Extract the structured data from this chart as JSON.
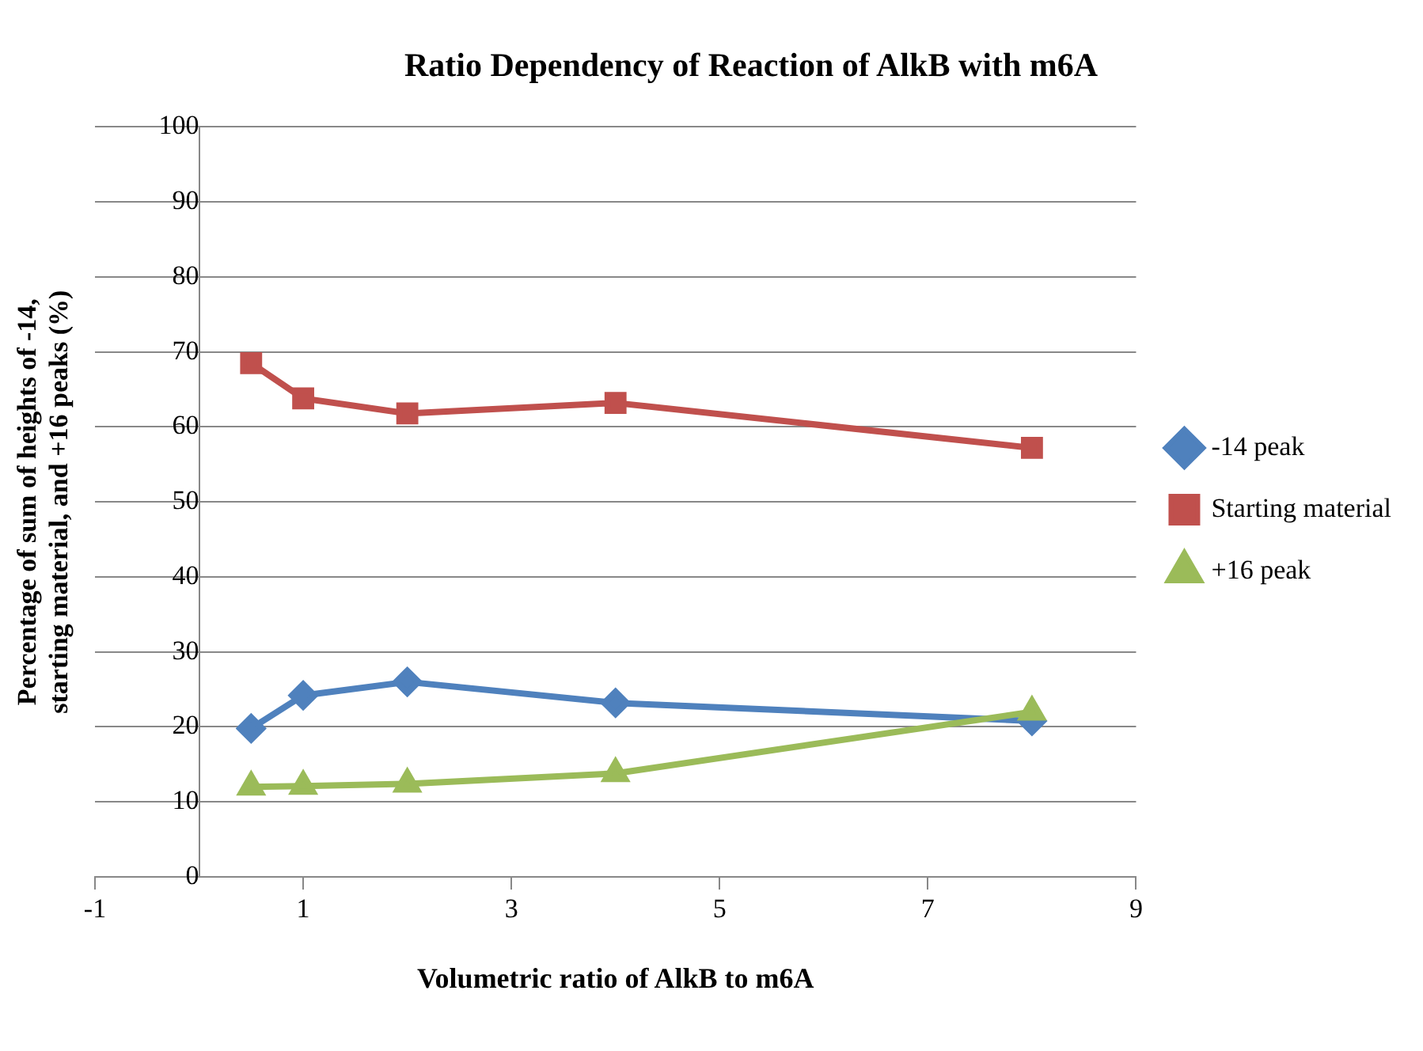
{
  "chart_data": {
    "type": "line",
    "title": "Ratio Dependency of Reaction of AlkB with m6A",
    "xlabel": "Volumetric ratio of AlkB to m6A",
    "ylabel": "Percentage of sum of heights of -14, starting material, and +16 peaks (%)",
    "x": [
      0.5,
      1,
      2,
      4,
      8
    ],
    "series": [
      {
        "name": "-14 peak",
        "color": "#4f81bd",
        "marker": "diamond",
        "values": [
          19.8,
          24.2,
          26.0,
          23.2,
          20.8
        ]
      },
      {
        "name": "Starting material",
        "color": "#c0504d",
        "marker": "square",
        "values": [
          68.5,
          63.8,
          61.8,
          63.2,
          57.2
        ]
      },
      {
        "name": "+16 peak",
        "color": "#9bbb59",
        "marker": "triangle",
        "values": [
          12.0,
          12.1,
          12.4,
          13.8,
          22.0
        ]
      }
    ],
    "xlim": [
      -1,
      9
    ],
    "xticks": [
      -1,
      1,
      3,
      5,
      7,
      9
    ],
    "ylim": [
      0,
      100
    ],
    "yticks": [
      0,
      10,
      20,
      30,
      40,
      50,
      60,
      70,
      80,
      90,
      100
    ],
    "grid": "y",
    "legend": "right",
    "line_style": "solid"
  }
}
